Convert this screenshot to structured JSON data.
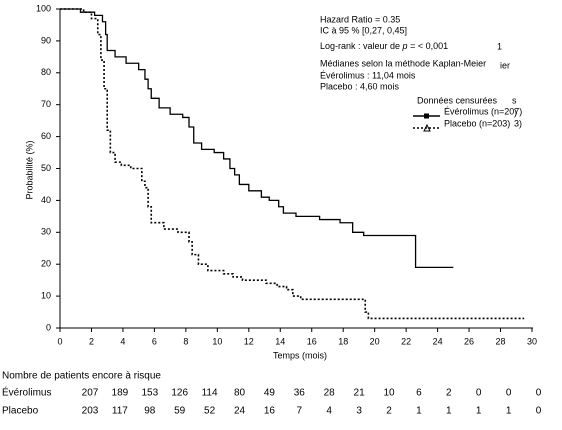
{
  "chart_data": {
    "type": "step",
    "xlabel": "Temps (mois)",
    "ylabel": "Probabilité (%)",
    "xlim": [
      0,
      30
    ],
    "ylim": [
      0,
      100
    ],
    "xticks": [
      0,
      2,
      4,
      6,
      8,
      10,
      12,
      14,
      16,
      18,
      20,
      22,
      24,
      26,
      28,
      30
    ],
    "yticks": [
      0,
      10,
      20,
      30,
      40,
      50,
      60,
      70,
      80,
      90,
      100
    ],
    "annotations": [
      "Hazard Ratio = 0.35",
      "IC à 95 % [0,27, 0,45]"
    ],
    "logrank": [
      "Log-rank : valeur de ",
      "p",
      " = < 0,001"
    ],
    "medians": [
      "Médianes selon la méthode Kaplan-Meier",
      "Évérolimus : 11,04 mois",
      "Placebo : 4,60 mois"
    ],
    "stray_text": [
      "1",
      "ier",
      "s",
      ")",
      "3)"
    ],
    "legend_title": "Données censurées",
    "series": [
      {
        "name": "Évérolimus (n=207)",
        "color": "#000000",
        "style": "solid",
        "x": [
          0,
          1.3,
          2.2,
          2.7,
          2.9,
          3.0,
          3.5,
          4.2,
          5.0,
          5.4,
          5.6,
          5.8,
          6.3,
          7.0,
          7.8,
          8.2,
          8.5,
          9.0,
          9.8,
          10.4,
          10.8,
          11.1,
          11.4,
          12.0,
          12.8,
          13.3,
          13.9,
          14.2,
          15.0,
          16.5,
          17.8,
          18.6,
          19.3,
          20.0,
          22.6,
          25.0
        ],
        "values": [
          100,
          99,
          98,
          96,
          92,
          87,
          85,
          83,
          81,
          78,
          75,
          72,
          69,
          67,
          66,
          63,
          58,
          56,
          55,
          53,
          50,
          48,
          45,
          43,
          41,
          40,
          38,
          36,
          35,
          34,
          33,
          30,
          29,
          29,
          19,
          19
        ]
      },
      {
        "name": "Placebo (n=203)",
        "color": "#000000",
        "style": "dotted",
        "x": [
          0,
          1.5,
          2.0,
          2.4,
          2.6,
          2.8,
          3.0,
          3.2,
          3.5,
          3.9,
          4.5,
          5.2,
          5.4,
          5.6,
          5.8,
          6.6,
          7.5,
          8.2,
          8.4,
          8.8,
          9.4,
          10.4,
          11.0,
          11.6,
          13.1,
          13.8,
          14.4,
          14.8,
          15.3,
          19.4,
          19.6,
          29.5
        ],
        "values": [
          100,
          99,
          97,
          92,
          84,
          75,
          62,
          55,
          52,
          51,
          50,
          46,
          44,
          38,
          33,
          31,
          30,
          27,
          23,
          20,
          18,
          17,
          16,
          15,
          14,
          13,
          12,
          10,
          9,
          5,
          3,
          3
        ]
      }
    ],
    "at_risk": {
      "title": "Nombre de patients encore à risque",
      "rows": [
        {
          "name": "Évérolimus",
          "values": [
            207,
            189,
            153,
            126,
            114,
            80,
            49,
            36,
            28,
            21,
            10,
            6,
            2,
            0,
            0,
            0
          ]
        },
        {
          "name": "Placebo",
          "values": [
            203,
            117,
            98,
            59,
            52,
            24,
            16,
            7,
            4,
            3,
            2,
            1,
            1,
            1,
            1,
            0
          ]
        }
      ]
    }
  }
}
